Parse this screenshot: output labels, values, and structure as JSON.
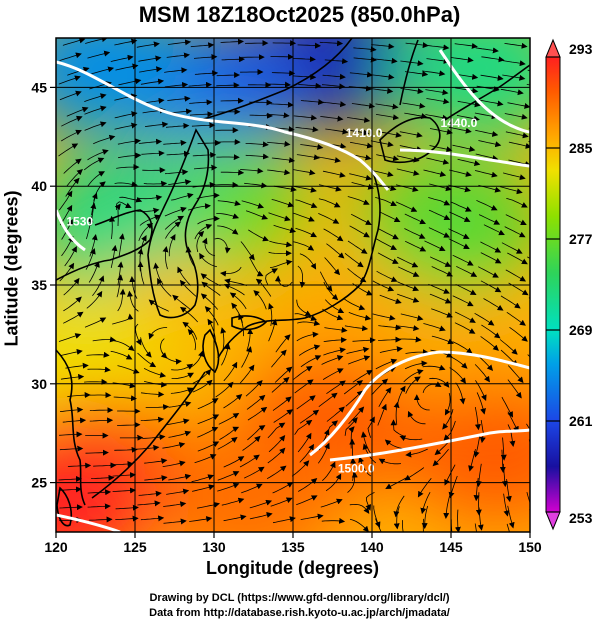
{
  "title": "MSM 18Z18Oct2025 (850.0hPa)",
  "x_axis_label": "Longitude (degrees)",
  "y_axis_label": "Latitude  (degrees)",
  "credits": [
    "Drawing by DCL (https://www.gfd-dennou.org/library/dcl/)",
    "Data from http://database.rish.kyoto-u.ac.jp/arch/jmadata/"
  ],
  "map": {
    "lon_range": [
      120,
      150
    ],
    "lat_range": [
      22.5,
      47.5
    ],
    "lon_ticks": [
      "120",
      "125",
      "130",
      "135",
      "140",
      "145",
      "150"
    ],
    "lat_ticks": [
      "25",
      "30",
      "35",
      "40",
      "45"
    ],
    "grid": true,
    "colorbar": {
      "labels": [
        "293",
        "285",
        "277",
        "269",
        "261",
        "253"
      ],
      "colors": [
        "#ff2020",
        "#ff8a00",
        "#ffd200",
        "#4fd34f",
        "#00e0c0",
        "#1c46e6",
        "#1810a0",
        "#d000d0"
      ]
    },
    "contour_labels": [
      {
        "text": "1500.0",
        "lon": 139.0,
        "lat": 25.5
      },
      {
        "text": "1410.0",
        "lon": 139.5,
        "lat": 42.5
      },
      {
        "text": "1440.0",
        "lon": 145.5,
        "lat": 43.0
      },
      {
        "text": "1530",
        "lon": 121.5,
        "lat": 38.0
      }
    ],
    "temperature_centers": [
      {
        "lon": 138.0,
        "lat": 46.5,
        "value": 258
      },
      {
        "lon": 130.0,
        "lat": 45.0,
        "value": 262
      },
      {
        "lon": 123.0,
        "lat": 46.0,
        "value": 265
      },
      {
        "lon": 147.0,
        "lat": 46.0,
        "value": 272
      },
      {
        "lon": 130.0,
        "lat": 39.0,
        "value": 277
      },
      {
        "lon": 124.0,
        "lat": 38.0,
        "value": 272
      },
      {
        "lon": 145.0,
        "lat": 38.0,
        "value": 276
      },
      {
        "lon": 128.0,
        "lat": 33.0,
        "value": 285
      },
      {
        "lon": 138.0,
        "lat": 33.0,
        "value": 286
      },
      {
        "lon": 121.0,
        "lat": 31.0,
        "value": 283
      },
      {
        "lon": 146.0,
        "lat": 31.0,
        "value": 286
      },
      {
        "lon": 137.0,
        "lat": 28.0,
        "value": 290
      },
      {
        "lon": 123.0,
        "lat": 26.0,
        "value": 290
      },
      {
        "lon": 148.0,
        "lat": 26.5,
        "value": 290
      },
      {
        "lon": 132.0,
        "lat": 24.0,
        "value": 289
      },
      {
        "lon": 120.3,
        "lat": 24.0,
        "value": 293
      }
    ]
  }
}
